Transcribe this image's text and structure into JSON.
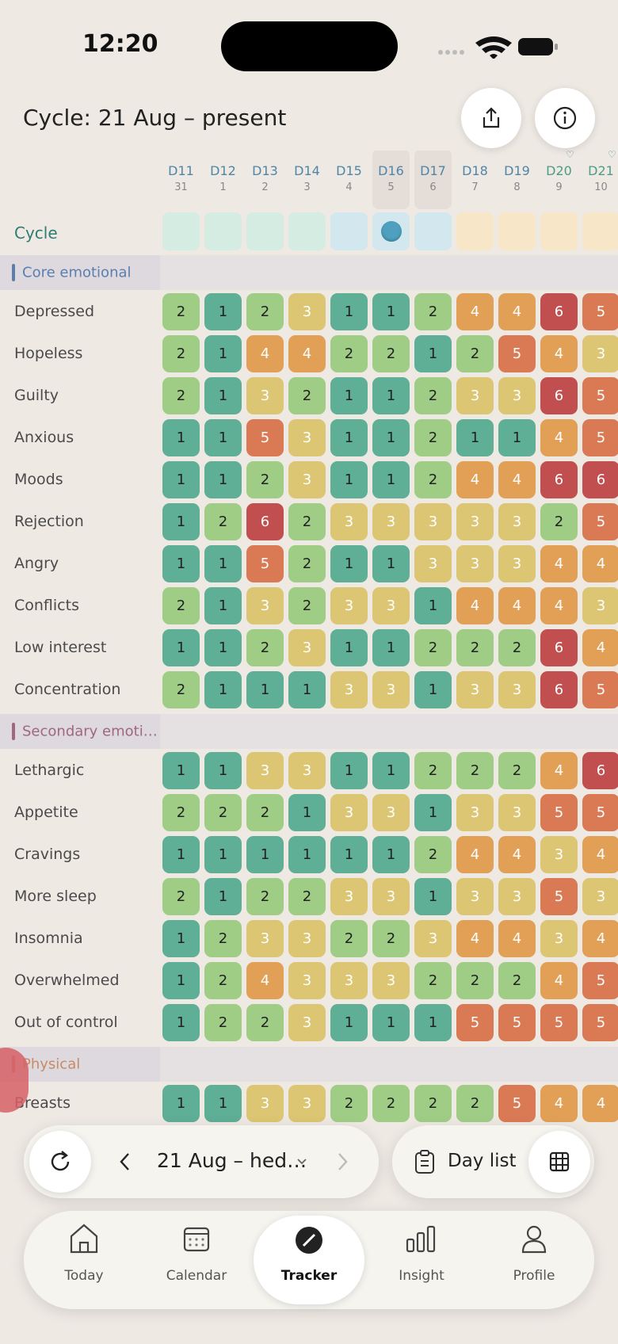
{
  "status_bar": {
    "time": "12:20"
  },
  "header": {
    "title": "Cycle: 21 Aug – present"
  },
  "tracker": {
    "days": [
      {
        "label": "D11",
        "date": 31
      },
      {
        "label": "D12",
        "date": 1
      },
      {
        "label": "D13",
        "date": 2
      },
      {
        "label": "D14",
        "date": 3
      },
      {
        "label": "D15",
        "date": 4
      },
      {
        "label": "D16",
        "date": 5
      },
      {
        "label": "D17",
        "date": 6
      },
      {
        "label": "D18",
        "date": 7
      },
      {
        "label": "D19",
        "date": 8
      },
      {
        "label": "D20",
        "date": 9
      },
      {
        "label": "D21",
        "date": 10
      }
    ],
    "cycle_label": "Cycle",
    "level_colors": [
      "#5fae96",
      "#9fcd86",
      "#dcc673",
      "#e2a057",
      "#da7a55",
      "#c24f4f"
    ],
    "sections": [
      {
        "name": "Core emotional",
        "color": "#5b7fae",
        "rows": [
          {
            "label": "Depressed",
            "values": [
              2,
              1,
              2,
              3,
              1,
              1,
              2,
              4,
              4,
              6,
              5
            ]
          },
          {
            "label": "Hopeless",
            "values": [
              2,
              1,
              4,
              4,
              2,
              2,
              1,
              2,
              5,
              4,
              3
            ]
          },
          {
            "label": "Guilty",
            "values": [
              2,
              1,
              3,
              2,
              1,
              1,
              2,
              3,
              3,
              6,
              5
            ]
          },
          {
            "label": "Anxious",
            "values": [
              1,
              1,
              5,
              3,
              1,
              1,
              2,
              1,
              1,
              4,
              5
            ]
          },
          {
            "label": "Moods",
            "values": [
              1,
              1,
              2,
              3,
              1,
              1,
              2,
              4,
              4,
              6,
              6
            ]
          },
          {
            "label": "Rejection",
            "values": [
              1,
              2,
              6,
              2,
              3,
              3,
              3,
              3,
              3,
              2,
              5
            ]
          },
          {
            "label": "Angry",
            "values": [
              1,
              1,
              5,
              2,
              1,
              1,
              3,
              3,
              3,
              4,
              4
            ]
          },
          {
            "label": "Conflicts",
            "values": [
              2,
              1,
              3,
              2,
              3,
              3,
              1,
              4,
              4,
              4,
              3
            ]
          },
          {
            "label": "Low interest",
            "values": [
              1,
              1,
              2,
              3,
              1,
              1,
              2,
              2,
              2,
              6,
              4
            ]
          },
          {
            "label": "Concentration",
            "values": [
              2,
              1,
              1,
              1,
              3,
              3,
              1,
              3,
              3,
              6,
              5
            ]
          }
        ]
      },
      {
        "name": "Secondary emoti…",
        "color": "#a0687c",
        "rows": [
          {
            "label": "Lethargic",
            "values": [
              1,
              1,
              3,
              3,
              1,
              1,
              2,
              2,
              2,
              4,
              6
            ]
          },
          {
            "label": "Appetite",
            "values": [
              2,
              2,
              2,
              1,
              3,
              3,
              1,
              3,
              3,
              5,
              5
            ]
          },
          {
            "label": "Cravings",
            "values": [
              1,
              1,
              1,
              1,
              1,
              1,
              2,
              4,
              4,
              3,
              4
            ]
          },
          {
            "label": "More sleep",
            "values": [
              2,
              1,
              2,
              2,
              3,
              3,
              1,
              3,
              3,
              5,
              3
            ]
          },
          {
            "label": "Insomnia",
            "values": [
              1,
              2,
              3,
              3,
              2,
              2,
              3,
              4,
              4,
              3,
              4
            ]
          },
          {
            "label": "Overwhelmed",
            "values": [
              1,
              2,
              4,
              3,
              3,
              3,
              2,
              2,
              2,
              4,
              5
            ]
          },
          {
            "label": "Out of control",
            "values": [
              1,
              2,
              2,
              3,
              1,
              1,
              1,
              5,
              5,
              5,
              5
            ]
          }
        ]
      },
      {
        "name": "Physical",
        "color": "#c98a66",
        "rows": [
          {
            "label": "Breasts",
            "values": [
              1,
              1,
              3,
              3,
              2,
              2,
              2,
              2,
              5,
              4,
              4
            ]
          }
        ]
      }
    ]
  },
  "controls": {
    "range": "21 Aug – hed…",
    "day_list": "Day list"
  },
  "nav": {
    "items": [
      "Today",
      "Calendar",
      "Tracker",
      "Insight",
      "Profile"
    ],
    "active": 2
  }
}
